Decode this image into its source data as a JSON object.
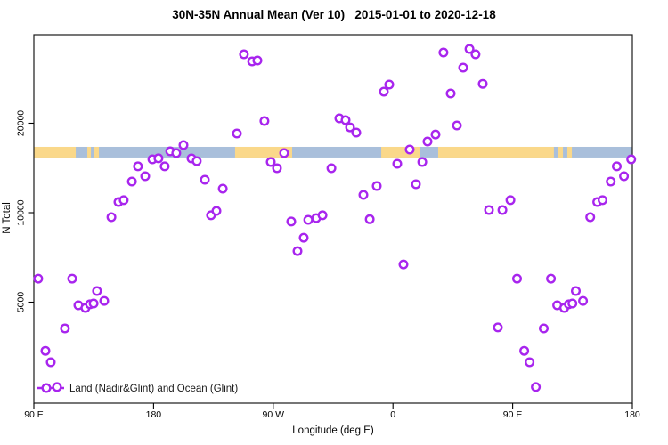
{
  "title": "30N-35N Annual Mean (Ver 10)   2015-01-01 to 2020-12-18",
  "chart_data": {
    "type": "scatter",
    "title": "30N-35N Annual Mean (Ver 10)   2015-01-01 to 2020-12-18",
    "xlabel": "Longitude (deg E)",
    "ylabel": "N Total",
    "x_axis": {
      "range_plot_deg": [
        90,
        540
      ],
      "ticks_deg": [
        90,
        180,
        270,
        360,
        450,
        540
      ],
      "tick_labels": [
        "90 E",
        "180",
        "90 W",
        "0",
        "90 E",
        "180"
      ],
      "note": "longitude wraps eastward: 90E to 180 to 90W to 0 to 90E to 180; data left of 180 repeats at +360 deg"
    },
    "y_axis": {
      "scale": "log10",
      "range": [
        2300,
        41000
      ],
      "ticks": [
        20000,
        10000,
        5000
      ],
      "tick_labels": [
        "20000",
        "10000",
        "5000"
      ]
    },
    "grid": false,
    "legend": {
      "label": "Land (Nadir&Glint) and Ocean (Glint)",
      "position": "bottom-left"
    },
    "points": [
      [
        93.3,
        6000
      ],
      [
        98.7,
        3430
      ],
      [
        102.7,
        3140
      ],
      [
        107.4,
        2590
      ],
      [
        113.4,
        4080
      ],
      [
        118.8,
        6000
      ],
      [
        123.5,
        4880
      ],
      [
        128.8,
        4780
      ],
      [
        132.2,
        4920
      ],
      [
        134.9,
        4950
      ],
      [
        137.5,
        5450
      ],
      [
        142.9,
        5050
      ],
      [
        148.3,
        9660
      ],
      [
        153.6,
        10860
      ],
      [
        157.6,
        11020
      ],
      [
        163.7,
        12730
      ],
      [
        168.3,
        14320
      ],
      [
        173.7,
        13270
      ],
      [
        179.1,
        15130
      ],
      [
        183.7,
        15240
      ],
      [
        188.4,
        14320
      ],
      [
        192.5,
        16090
      ],
      [
        197.1,
        15870
      ],
      [
        202.5,
        16890
      ],
      [
        208.5,
        15230
      ],
      [
        212.5,
        14920
      ],
      [
        218.6,
        12910
      ],
      [
        223.2,
        9800
      ],
      [
        227.3,
        10140
      ],
      [
        232.0,
        12050
      ],
      [
        242.7,
        18470
      ],
      [
        248.0,
        34120
      ],
      [
        254.1,
        32300
      ],
      [
        258.1,
        32520
      ],
      [
        263.4,
        20350
      ],
      [
        268.1,
        14820
      ],
      [
        272.8,
        14120
      ],
      [
        278.2,
        15870
      ],
      [
        283.5,
        9340
      ],
      [
        288.2,
        7430
      ],
      [
        292.9,
        8240
      ],
      [
        296.3,
        9460
      ],
      [
        302.3,
        9590
      ],
      [
        307.0,
        9800
      ],
      [
        313.7,
        14120
      ],
      [
        319.7,
        20770
      ],
      [
        324.4,
        20490
      ],
      [
        327.7,
        19380
      ],
      [
        332.4,
        18600
      ],
      [
        337.8,
        11480
      ],
      [
        342.5,
        9510
      ],
      [
        347.8,
        12300
      ],
      [
        353.2,
        25550
      ],
      [
        357.2,
        26990
      ],
      [
        363.2,
        14610
      ],
      [
        367.9,
        6700
      ],
      [
        372.6,
        16320
      ],
      [
        377.3,
        12470
      ],
      [
        382.0,
        14820
      ],
      [
        386.0,
        17360
      ],
      [
        392.0,
        18340
      ],
      [
        398.0,
        34590
      ],
      [
        403.4,
        25200
      ],
      [
        408.1,
        19650
      ],
      [
        412.8,
        30780
      ],
      [
        417.5,
        35570
      ],
      [
        422.1,
        34120
      ],
      [
        427.5,
        27150
      ],
      [
        432.2,
        10210
      ],
      [
        438.9,
        4110
      ],
      [
        442.3,
        10210
      ],
      [
        448.3,
        11020
      ],
      [
        453.3,
        6000
      ],
      [
        458.7,
        3430
      ],
      [
        462.7,
        3140
      ],
      [
        467.4,
        2590
      ],
      [
        473.4,
        4080
      ],
      [
        478.8,
        6000
      ],
      [
        483.5,
        4880
      ],
      [
        488.8,
        4780
      ],
      [
        492.2,
        4920
      ],
      [
        494.9,
        4950
      ],
      [
        497.5,
        5450
      ],
      [
        502.9,
        5050
      ],
      [
        508.3,
        9660
      ],
      [
        513.6,
        10860
      ],
      [
        517.6,
        11020
      ],
      [
        523.7,
        12730
      ],
      [
        528.3,
        14320
      ],
      [
        533.7,
        13270
      ],
      [
        539.1,
        15130
      ]
    ],
    "map_strip": {
      "description": "horizontal world-map band across the plot: blue ocean with tan land segments",
      "band_n_range": [
        15340,
        16660
      ],
      "land_segments_deg": [
        [
          90,
          121.5
        ],
        [
          130.2,
          132.9
        ],
        [
          134.9,
          138.9
        ],
        [
          241.3,
          284.2
        ],
        [
          351.2,
          380.6
        ],
        [
          394.0,
          481.0
        ],
        [
          484.4,
          487.8
        ],
        [
          491.1,
          494.5
        ]
      ]
    }
  },
  "colors": {
    "point_stroke": "#A825EE",
    "point_fill": "#FFFFFF",
    "ocean": "#A9BFDB",
    "land": "#FAD88A",
    "axis": "#000000",
    "background": "#FFFFFF"
  }
}
